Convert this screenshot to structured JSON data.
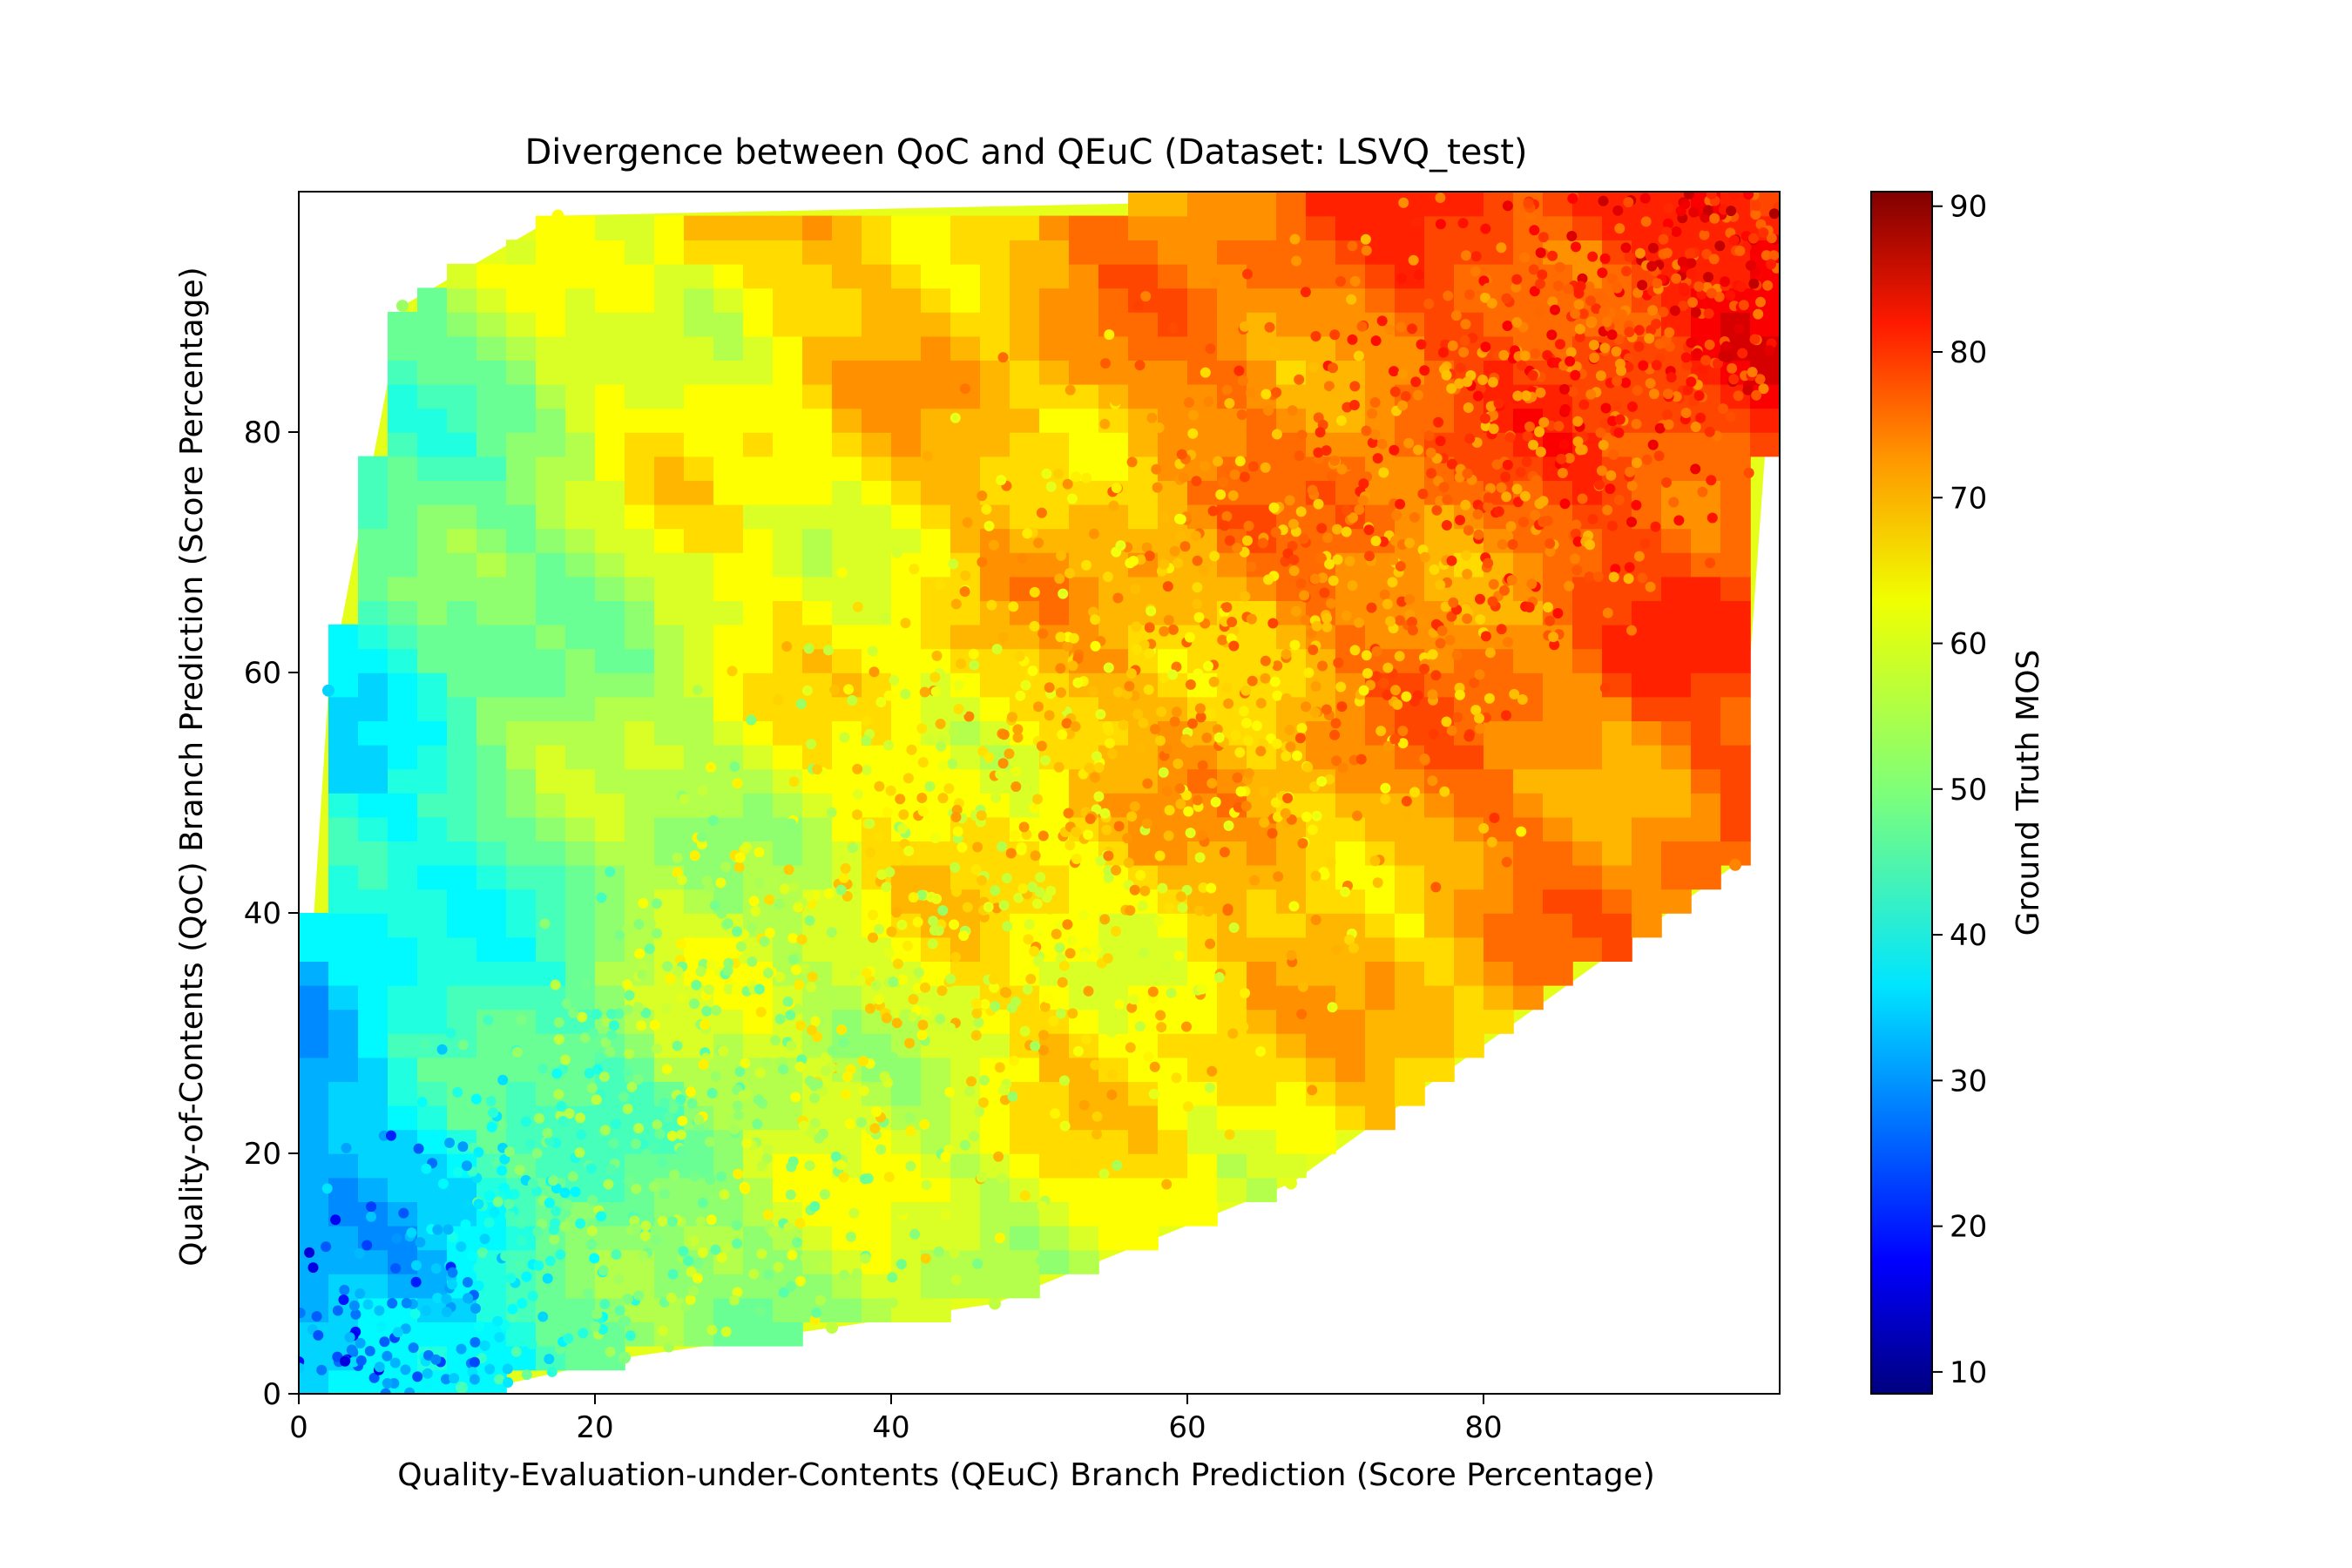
{
  "chart_data": {
    "type": "heatmap",
    "subtype": "tricontourf-scatter",
    "title": "Divergence between QoC and QEuC (Dataset: LSVQ_test)",
    "xlabel": "Quality-Evaluation-under-Contents (QEuC) Branch Prediction (Score Percentage)",
    "ylabel": "Quality-of-Contents (QoC) Branch Prediction (Score Percentage)",
    "xlim": [
      0,
      100
    ],
    "ylim": [
      0,
      100
    ],
    "x_ticks": [
      "0",
      "20",
      "40",
      "60",
      "80"
    ],
    "y_ticks": [
      "0",
      "20",
      "40",
      "60",
      "80"
    ],
    "x_tick_values": [
      0,
      20,
      40,
      60,
      80
    ],
    "y_tick_values": [
      0,
      20,
      40,
      60,
      80
    ],
    "colorbar": {
      "label": "Ground Truth MOS",
      "colormap": "jet",
      "range": [
        8.5,
        91
      ],
      "ticks": [
        "10",
        "20",
        "30",
        "40",
        "50",
        "60",
        "70",
        "80",
        "90"
      ],
      "tick_values": [
        10,
        20,
        30,
        40,
        50,
        60,
        70,
        80,
        90
      ]
    },
    "hull": [
      [
        0,
        0
      ],
      [
        11,
        0
      ],
      [
        22,
        3
      ],
      [
        36,
        5.5
      ],
      [
        47,
        7.5
      ],
      [
        67,
        17.5
      ],
      [
        97,
        44
      ],
      [
        100,
        95
      ],
      [
        100,
        100
      ],
      [
        94,
        100
      ],
      [
        17.5,
        98
      ],
      [
        7,
        90.5
      ],
      [
        2,
        58.5
      ],
      [
        0.5,
        30
      ],
      [
        0,
        5
      ]
    ],
    "labeled_points": [
      {
        "x": 17.5,
        "y": 98,
        "mos": 60
      },
      {
        "x": 7,
        "y": 90.5,
        "mos": 52
      },
      {
        "x": 2,
        "y": 58.5,
        "mos": 36
      },
      {
        "x": 97,
        "y": 44,
        "mos": 70
      },
      {
        "x": 67,
        "y": 17.5,
        "mos": 58
      },
      {
        "x": 47,
        "y": 7.5,
        "mos": 55
      },
      {
        "x": 36,
        "y": 5.5,
        "mos": 55
      },
      {
        "x": 22,
        "y": 3,
        "mos": 50
      },
      {
        "x": 11,
        "y": 0.5,
        "mos": 45
      }
    ],
    "mos_field_anchors": [
      {
        "x": 0,
        "y": 0,
        "mos": 30
      },
      {
        "x": 0,
        "y": 50,
        "mos": 37
      },
      {
        "x": 0,
        "y": 100,
        "mos": 45
      },
      {
        "x": 25,
        "y": 0,
        "mos": 50
      },
      {
        "x": 25,
        "y": 50,
        "mos": 55
      },
      {
        "x": 25,
        "y": 100,
        "mos": 62
      },
      {
        "x": 50,
        "y": 0,
        "mos": 57
      },
      {
        "x": 50,
        "y": 50,
        "mos": 63
      },
      {
        "x": 50,
        "y": 100,
        "mos": 68
      },
      {
        "x": 75,
        "y": 0,
        "mos": 60
      },
      {
        "x": 75,
        "y": 50,
        "mos": 68
      },
      {
        "x": 75,
        "y": 100,
        "mos": 74
      },
      {
        "x": 100,
        "y": 0,
        "mos": 65
      },
      {
        "x": 100,
        "y": 50,
        "mos": 73
      },
      {
        "x": 100,
        "y": 100,
        "mos": 80
      }
    ]
  }
}
